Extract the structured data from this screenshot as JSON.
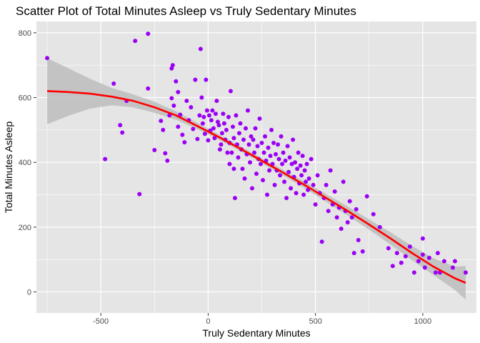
{
  "chart_data": {
    "type": "scatter",
    "title": "Scatter Plot of Total Minutes Asleep vs Truly Sedentary Minutes",
    "xlabel": "Truly Sedentary Minutes",
    "ylabel": "Total Minutes Asleep",
    "xlim": [
      -800,
      1250
    ],
    "ylim": [
      -65,
      835
    ],
    "x_ticks": [
      -500,
      0,
      500,
      1000
    ],
    "y_ticks": [
      0,
      200,
      400,
      600,
      800
    ],
    "grid": true,
    "legend": "none",
    "colors": {
      "panel": "#e5e5e5",
      "grid": "#ffffff",
      "point": "#9b00f5",
      "smooth": "#ff0000",
      "band": "#bdbdbd"
    },
    "points": [
      [
        -750,
        722
      ],
      [
        -480,
        410
      ],
      [
        -440,
        643
      ],
      [
        -410,
        515
      ],
      [
        -400,
        492
      ],
      [
        -380,
        590
      ],
      [
        -340,
        775
      ],
      [
        -320,
        302
      ],
      [
        -280,
        797
      ],
      [
        -280,
        628
      ],
      [
        -250,
        438
      ],
      [
        -220,
        528
      ],
      [
        -210,
        500
      ],
      [
        -200,
        428
      ],
      [
        -190,
        405
      ],
      [
        -180,
        545
      ],
      [
        -170,
        598
      ],
      [
        -170,
        690
      ],
      [
        -165,
        700
      ],
      [
        -160,
        575
      ],
      [
        -150,
        650
      ],
      [
        -140,
        617
      ],
      [
        -140,
        510
      ],
      [
        -130,
        547
      ],
      [
        -120,
        485
      ],
      [
        -110,
        462
      ],
      [
        -100,
        590
      ],
      [
        -90,
        530
      ],
      [
        -80,
        570
      ],
      [
        -70,
        503
      ],
      [
        -60,
        655
      ],
      [
        -50,
        472
      ],
      [
        -40,
        545
      ],
      [
        -35,
        750
      ],
      [
        -30,
        600
      ],
      [
        -25,
        520
      ],
      [
        -20,
        540
      ],
      [
        -15,
        488
      ],
      [
        -10,
        655
      ],
      [
        -5,
        560
      ],
      [
        0,
        468
      ],
      [
        5,
        545
      ],
      [
        10,
        498
      ],
      [
        15,
        530
      ],
      [
        20,
        560
      ],
      [
        25,
        505
      ],
      [
        30,
        475
      ],
      [
        35,
        550
      ],
      [
        40,
        590
      ],
      [
        45,
        525
      ],
      [
        50,
        515
      ],
      [
        55,
        440
      ],
      [
        60,
        455
      ],
      [
        65,
        490
      ],
      [
        70,
        550
      ],
      [
        75,
        520
      ],
      [
        80,
        470
      ],
      [
        85,
        500
      ],
      [
        90,
        430
      ],
      [
        95,
        540
      ],
      [
        100,
        460
      ],
      [
        100,
        395
      ],
      [
        105,
        620
      ],
      [
        110,
        430
      ],
      [
        115,
        510
      ],
      [
        120,
        475
      ],
      [
        120,
        380
      ],
      [
        125,
        290
      ],
      [
        130,
        545
      ],
      [
        135,
        455
      ],
      [
        140,
        415
      ],
      [
        145,
        490
      ],
      [
        150,
        520
      ],
      [
        155,
        440
      ],
      [
        160,
        380
      ],
      [
        165,
        470
      ],
      [
        170,
        350
      ],
      [
        175,
        505
      ],
      [
        180,
        425
      ],
      [
        185,
        560
      ],
      [
        190,
        455
      ],
      [
        195,
        400
      ],
      [
        200,
        480
      ],
      [
        205,
        320
      ],
      [
        210,
        470
      ],
      [
        215,
        430
      ],
      [
        220,
        505
      ],
      [
        225,
        365
      ],
      [
        230,
        450
      ],
      [
        235,
        410
      ],
      [
        240,
        535
      ],
      [
        245,
        395
      ],
      [
        250,
        460
      ],
      [
        255,
        345
      ],
      [
        260,
        430
      ],
      [
        265,
        480
      ],
      [
        270,
        405
      ],
      [
        275,
        300
      ],
      [
        280,
        445
      ],
      [
        285,
        375
      ],
      [
        290,
        420
      ],
      [
        295,
        500
      ],
      [
        300,
        395
      ],
      [
        305,
        460
      ],
      [
        310,
        330
      ],
      [
        315,
        425
      ],
      [
        320,
        375
      ],
      [
        325,
        455
      ],
      [
        330,
        410
      ],
      [
        335,
        360
      ],
      [
        340,
        480
      ],
      [
        345,
        395
      ],
      [
        350,
        430
      ],
      [
        355,
        340
      ],
      [
        360,
        405
      ],
      [
        365,
        290
      ],
      [
        370,
        450
      ],
      [
        375,
        370
      ],
      [
        380,
        415
      ],
      [
        385,
        320
      ],
      [
        390,
        395
      ],
      [
        395,
        470
      ],
      [
        400,
        355
      ],
      [
        405,
        400
      ],
      [
        410,
        305
      ],
      [
        415,
        380
      ],
      [
        420,
        430
      ],
      [
        425,
        335
      ],
      [
        430,
        390
      ],
      [
        435,
        360
      ],
      [
        440,
        420
      ],
      [
        445,
        300
      ],
      [
        450,
        375
      ],
      [
        455,
        340
      ],
      [
        460,
        395
      ],
      [
        465,
        315
      ],
      [
        470,
        350
      ],
      [
        480,
        410
      ],
      [
        490,
        330
      ],
      [
        500,
        270
      ],
      [
        510,
        360
      ],
      [
        520,
        305
      ],
      [
        530,
        155
      ],
      [
        540,
        290
      ],
      [
        550,
        330
      ],
      [
        560,
        250
      ],
      [
        570,
        375
      ],
      [
        580,
        270
      ],
      [
        590,
        310
      ],
      [
        600,
        230
      ],
      [
        610,
        260
      ],
      [
        620,
        195
      ],
      [
        630,
        340
      ],
      [
        640,
        250
      ],
      [
        650,
        215
      ],
      [
        660,
        280
      ],
      [
        670,
        230
      ],
      [
        680,
        120
      ],
      [
        690,
        255
      ],
      [
        700,
        160
      ],
      [
        720,
        125
      ],
      [
        740,
        295
      ],
      [
        770,
        240
      ],
      [
        800,
        200
      ],
      [
        840,
        135
      ],
      [
        860,
        80
      ],
      [
        880,
        120
      ],
      [
        900,
        90
      ],
      [
        920,
        110
      ],
      [
        940,
        140
      ],
      [
        960,
        60
      ],
      [
        980,
        95
      ],
      [
        1000,
        165
      ],
      [
        1000,
        115
      ],
      [
        1010,
        75
      ],
      [
        1030,
        105
      ],
      [
        1060,
        60
      ],
      [
        1070,
        120
      ],
      [
        1080,
        60
      ],
      [
        1100,
        95
      ],
      [
        1140,
        75
      ],
      [
        1150,
        95
      ],
      [
        1200,
        60
      ]
    ],
    "smooth_curve": [
      [
        -750,
        620
      ],
      [
        -650,
        617
      ],
      [
        -550,
        612
      ],
      [
        -450,
        603
      ],
      [
        -350,
        590
      ],
      [
        -250,
        570
      ],
      [
        -150,
        545
      ],
      [
        -50,
        512
      ],
      [
        50,
        478
      ],
      [
        150,
        442
      ],
      [
        250,
        405
      ],
      [
        350,
        368
      ],
      [
        450,
        330
      ],
      [
        550,
        290
      ],
      [
        650,
        250
      ],
      [
        750,
        208
      ],
      [
        850,
        165
      ],
      [
        950,
        120
      ],
      [
        1050,
        78
      ],
      [
        1150,
        42
      ],
      [
        1200,
        28
      ]
    ],
    "band_upper": [
      [
        -750,
        722
      ],
      [
        -650,
        690
      ],
      [
        -550,
        658
      ],
      [
        -450,
        630
      ],
      [
        -350,
        610
      ],
      [
        -250,
        587
      ],
      [
        -150,
        558
      ],
      [
        -50,
        522
      ],
      [
        50,
        486
      ],
      [
        150,
        450
      ],
      [
        250,
        413
      ],
      [
        350,
        377
      ],
      [
        450,
        340
      ],
      [
        550,
        302
      ],
      [
        650,
        264
      ],
      [
        750,
        224
      ],
      [
        850,
        184
      ],
      [
        950,
        142
      ],
      [
        1050,
        104
      ],
      [
        1150,
        78
      ],
      [
        1200,
        80
      ]
    ],
    "band_lower": [
      [
        -750,
        518
      ],
      [
        -650,
        544
      ],
      [
        -550,
        566
      ],
      [
        -450,
        576
      ],
      [
        -350,
        570
      ],
      [
        -250,
        553
      ],
      [
        -150,
        532
      ],
      [
        -50,
        502
      ],
      [
        50,
        470
      ],
      [
        150,
        434
      ],
      [
        250,
        397
      ],
      [
        350,
        359
      ],
      [
        450,
        320
      ],
      [
        550,
        278
      ],
      [
        650,
        236
      ],
      [
        750,
        192
      ],
      [
        850,
        146
      ],
      [
        950,
        98
      ],
      [
        1050,
        52
      ],
      [
        1150,
        6
      ],
      [
        1200,
        -24
      ]
    ]
  }
}
